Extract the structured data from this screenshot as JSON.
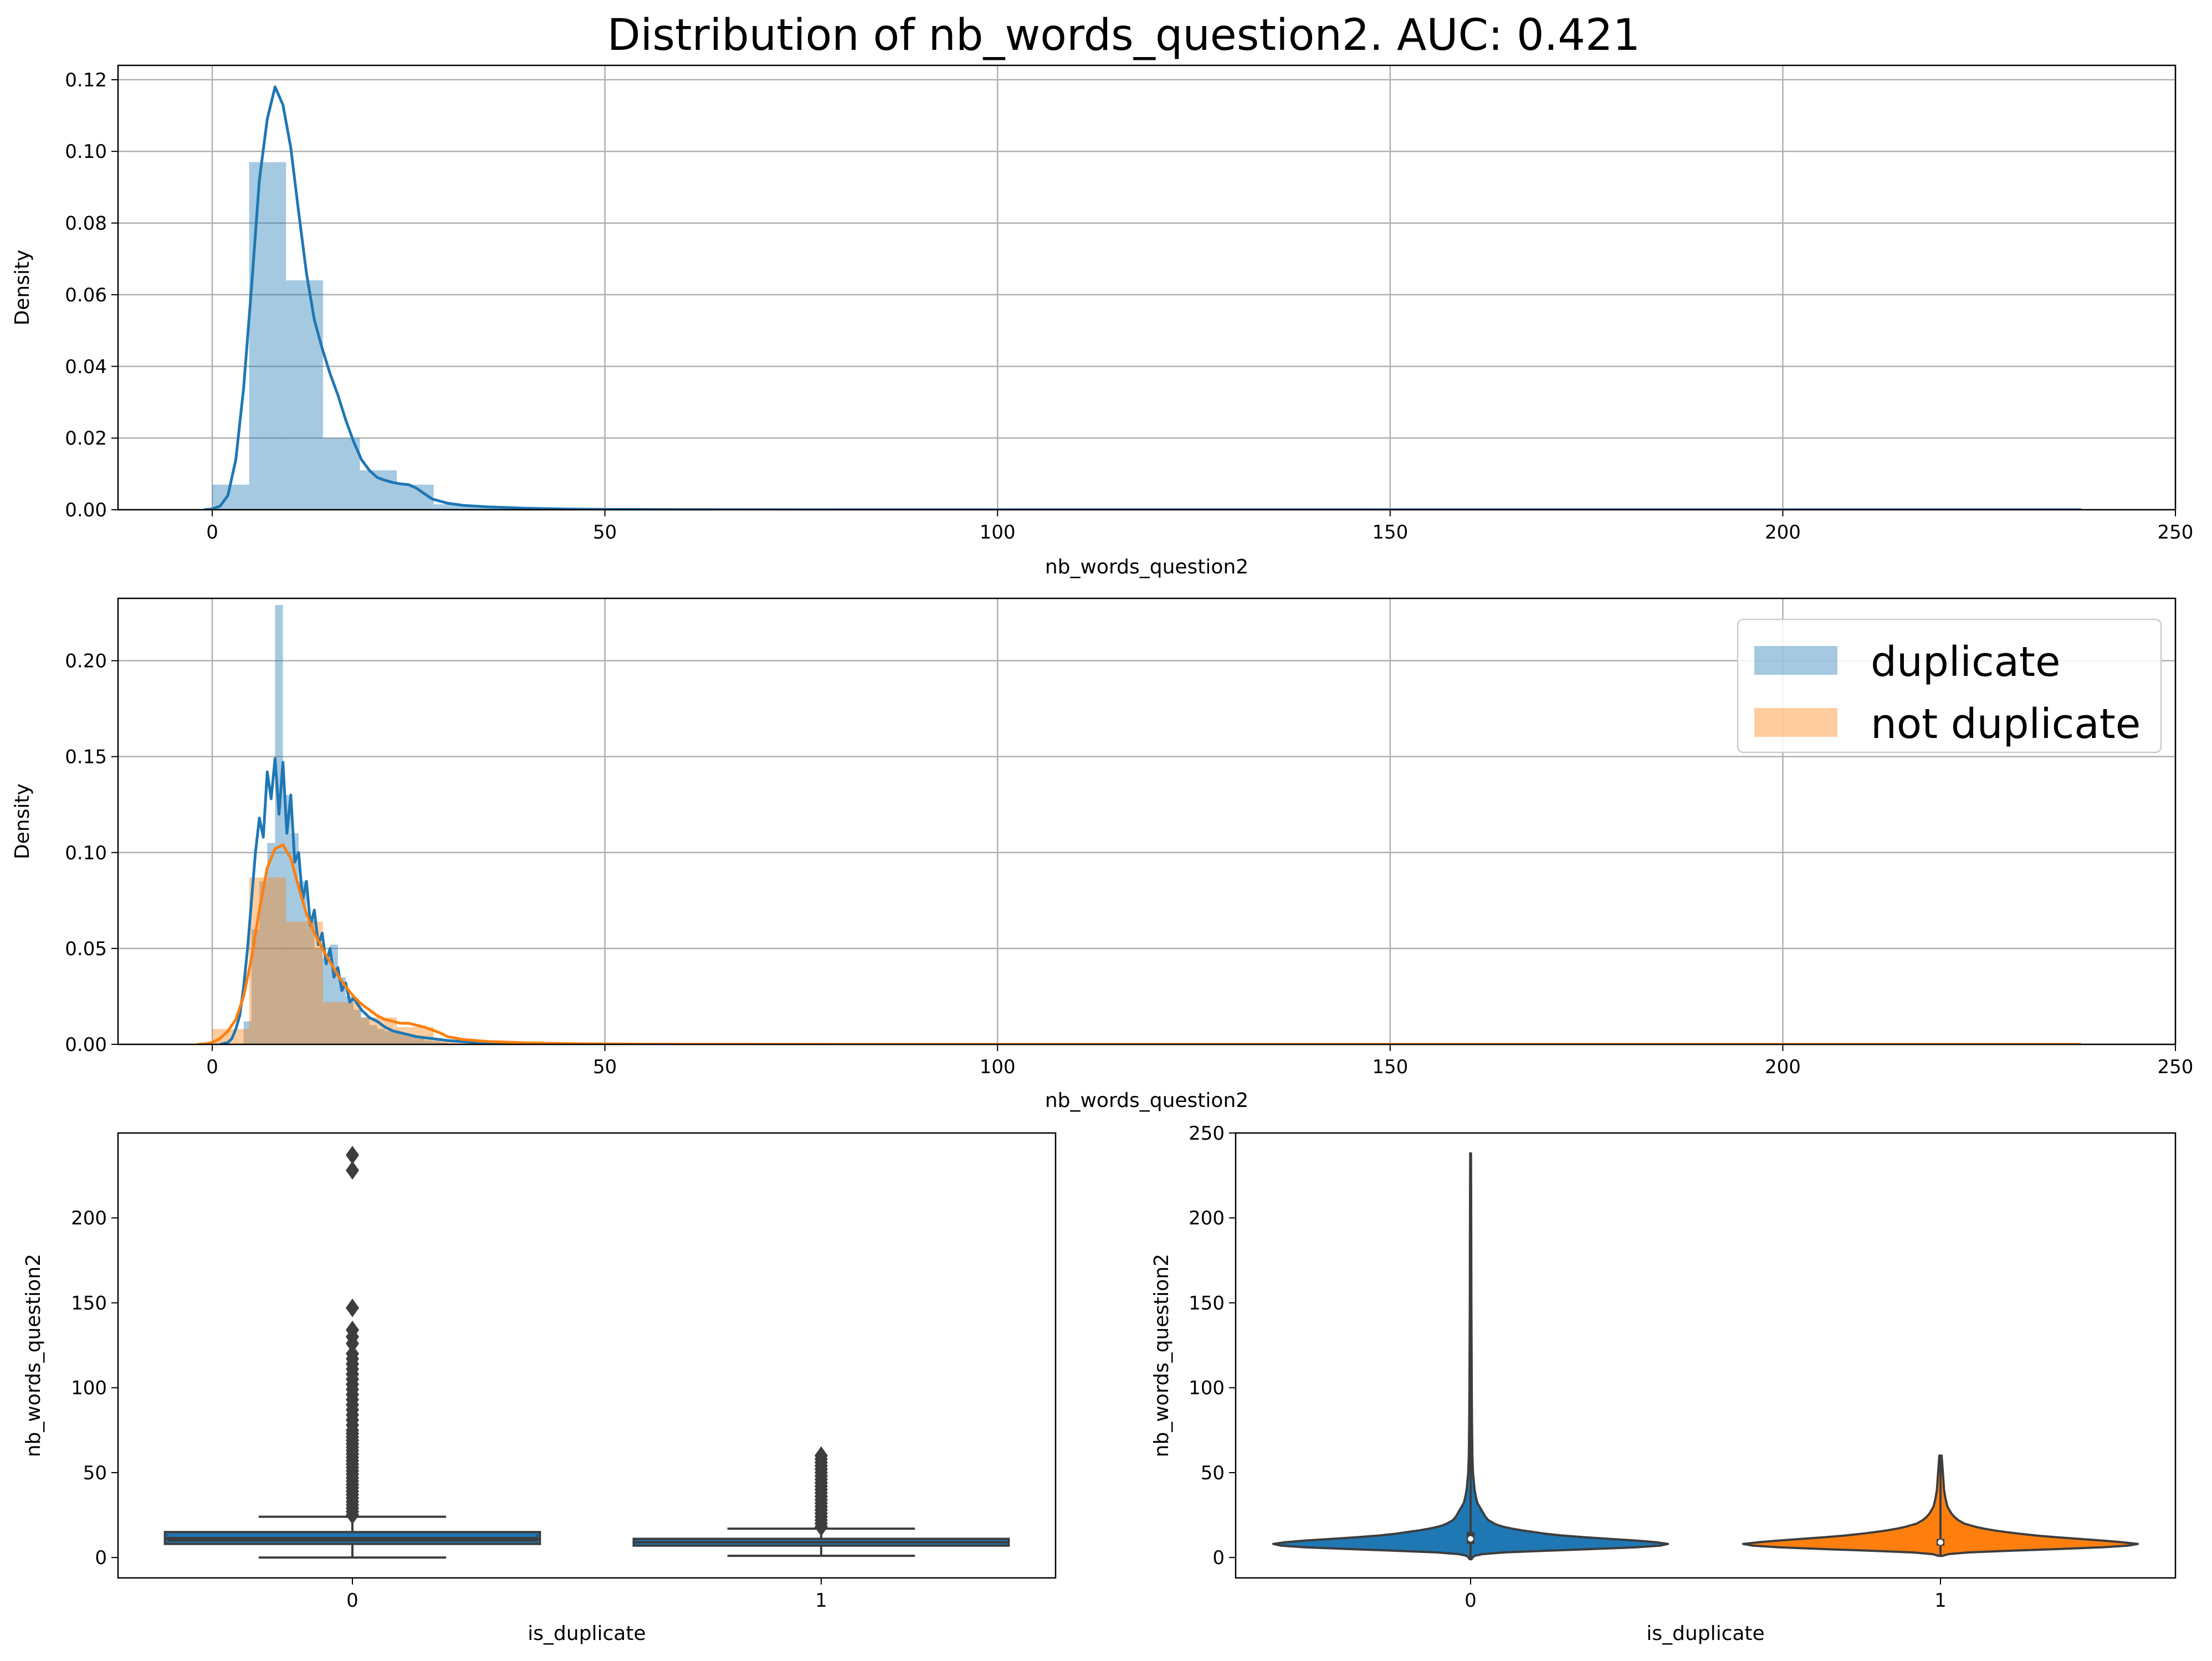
{
  "figure": {
    "title": "Distribution of nb_words_question2. AUC: 0.421"
  },
  "chart_data": [
    {
      "type": "histogram+kde",
      "xlabel": "nb_words_question2",
      "ylabel": "Density",
      "xlim": [
        -12,
        250
      ],
      "ylim": [
        0,
        0.124
      ],
      "xticks": [
        0,
        50,
        100,
        150,
        200,
        250
      ],
      "yticks": [
        0.0,
        0.02,
        0.04,
        0.06,
        0.08,
        0.1,
        0.12
      ],
      "grid": true,
      "color": "#1f77b4",
      "hist_alpha": 0.4,
      "histogram": {
        "edges": [
          0,
          4.7,
          9.4,
          14.1,
          18.8,
          23.5,
          28.2,
          32.9,
          37.6,
          42.3,
          47
        ],
        "values": [
          0.007,
          0.097,
          0.064,
          0.02,
          0.011,
          0.007,
          0.0015,
          0.0008,
          0.0004,
          0.0003
        ]
      },
      "kde": {
        "x": [
          -1,
          0,
          1,
          2,
          3,
          4,
          5,
          6,
          7,
          8,
          9,
          10,
          11,
          12,
          13,
          14,
          15,
          16,
          17,
          18,
          19,
          20,
          21,
          22,
          23,
          24,
          25,
          26,
          27,
          28,
          30,
          32,
          35,
          40,
          45,
          50,
          60,
          80,
          120,
          160,
          200,
          238
        ],
        "y": [
          0,
          0.0002,
          0.001,
          0.004,
          0.014,
          0.034,
          0.062,
          0.092,
          0.109,
          0.118,
          0.113,
          0.101,
          0.083,
          0.066,
          0.053,
          0.045,
          0.038,
          0.032,
          0.025,
          0.019,
          0.014,
          0.011,
          0.009,
          0.0082,
          0.0076,
          0.0072,
          0.007,
          0.006,
          0.0045,
          0.003,
          0.0018,
          0.0012,
          0.0008,
          0.0004,
          0.0002,
          0.0001,
          5e-05,
          0,
          0,
          0,
          0,
          0
        ]
      }
    },
    {
      "type": "histogram+kde",
      "xlabel": "nb_words_question2",
      "ylabel": "Density",
      "xlim": [
        -12,
        250
      ],
      "ylim": [
        0,
        0.2325
      ],
      "xticks": [
        0,
        50,
        100,
        150,
        200,
        250
      ],
      "yticks": [
        0.0,
        0.05,
        0.1,
        0.15,
        0.2
      ],
      "grid": true,
      "legend": "top-right",
      "series": [
        {
          "name": "duplicate",
          "color": "#1f77b4",
          "hist_alpha": 0.4,
          "histogram": {
            "edges": [
              4,
              5,
              6,
              7,
              8,
              9,
              10,
              11,
              12,
              13,
              14,
              15,
              16,
              17,
              18,
              19,
              20,
              21,
              22,
              23,
              24,
              25,
              26,
              27,
              28,
              29,
              30
            ],
            "values": [
              0.012,
              0.06,
              0.085,
              0.105,
              0.229,
              0.13,
              0.11,
              0.085,
              0.065,
              0.05,
              0.045,
              0.052,
              0.035,
              0.025,
              0.018,
              0.014,
              0.01,
              0.008,
              0.007,
              0.006,
              0.005,
              0.004,
              0.003,
              0.002,
              0.0015,
              0.001
            ]
          },
          "kde": {
            "x": [
              1,
              2,
              2.5,
              3,
              3.5,
              4,
              4.5,
              5,
              5.5,
              6,
              6.5,
              7,
              7.5,
              8,
              8.5,
              9,
              9.5,
              10,
              10.5,
              11,
              11.5,
              12,
              12.5,
              13,
              13.5,
              14,
              14.5,
              15,
              15.5,
              16,
              16.5,
              17,
              17.5,
              18,
              19,
              20,
              21,
              22,
              23,
              24,
              25,
              26,
              28,
              30,
              35,
              40,
              60,
              100,
              150,
              200,
              238
            ],
            "y": [
              0,
              0.001,
              0.003,
              0.008,
              0.015,
              0.03,
              0.05,
              0.075,
              0.1,
              0.118,
              0.108,
              0.142,
              0.128,
              0.149,
              0.12,
              0.147,
              0.11,
              0.13,
              0.095,
              0.1,
              0.075,
              0.085,
              0.062,
              0.07,
              0.052,
              0.058,
              0.042,
              0.05,
              0.035,
              0.04,
              0.028,
              0.032,
              0.022,
              0.024,
              0.018,
              0.014,
              0.012,
              0.009,
              0.007,
              0.006,
              0.005,
              0.004,
              0.003,
              0.002,
              0.0005,
              0.0002,
              0,
              0,
              0,
              0,
              0
            ]
          }
        },
        {
          "name": "not duplicate",
          "color": "#ff7f0e",
          "hist_alpha": 0.4,
          "histogram": {
            "edges": [
              0,
              4.7,
              9.4,
              14.1,
              18.8,
              23.5,
              28.2,
              32.9,
              37.6,
              42.3,
              47
            ],
            "values": [
              0.008,
              0.087,
              0.064,
              0.022,
              0.014,
              0.009,
              0.002,
              0.001,
              0.0005,
              0.0003
            ]
          },
          "kde": {
            "x": [
              -2,
              -1,
              0,
              1,
              2,
              3,
              4,
              5,
              6,
              7,
              8,
              9,
              10,
              11,
              12,
              13,
              14,
              15,
              16,
              17,
              18,
              19,
              20,
              21,
              22,
              23,
              24,
              25,
              26,
              27,
              28,
              29,
              30,
              32,
              35,
              40,
              45,
              50,
              60,
              80,
              120,
              160,
              200,
              238
            ],
            "y": [
              0,
              0.0002,
              0.001,
              0.003,
              0.007,
              0.013,
              0.025,
              0.045,
              0.07,
              0.092,
              0.102,
              0.104,
              0.097,
              0.082,
              0.068,
              0.058,
              0.05,
              0.043,
              0.036,
              0.03,
              0.025,
              0.021,
              0.018,
              0.015,
              0.013,
              0.012,
              0.011,
              0.011,
              0.01,
              0.009,
              0.0075,
              0.006,
              0.004,
              0.0025,
              0.0015,
              0.0008,
              0.0004,
              0.0002,
              0.0001,
              0,
              0,
              0,
              0,
              0
            ]
          }
        }
      ]
    },
    {
      "type": "box",
      "xlabel": "is_duplicate",
      "ylabel": "nb_words_question2",
      "categories": [
        "0",
        "1"
      ],
      "ylim": [
        -12,
        250
      ],
      "yticks": [
        0,
        50,
        100,
        150,
        200
      ],
      "color": "#1f77b4",
      "box_edge_color": "#3d3d3d",
      "boxes": [
        {
          "category": "0",
          "whisker_low": 0,
          "q1": 8,
          "median": 11,
          "mean_line": 13,
          "q3": 15,
          "whisker_high": 24,
          "outliers": [
            25,
            27,
            29,
            31,
            33,
            35,
            37,
            39,
            41,
            43,
            45,
            47,
            49,
            51,
            53,
            55,
            57,
            59,
            61,
            63,
            65,
            67,
            69,
            71,
            73,
            75,
            78,
            81,
            84,
            87,
            90,
            93,
            96,
            99,
            102,
            105,
            108,
            111,
            114,
            117,
            120,
            126,
            130,
            134,
            147,
            228,
            237
          ]
        },
        {
          "category": "1",
          "whisker_low": 1,
          "q1": 7,
          "median": 9,
          "q3": 11,
          "whisker_high": 17,
          "outliers": [
            18,
            20,
            22,
            24,
            26,
            28,
            30,
            32,
            34,
            36,
            38,
            40,
            42,
            44,
            46,
            48,
            50,
            52,
            54,
            56,
            58,
            60
          ]
        }
      ]
    },
    {
      "type": "violin",
      "xlabel": "is_duplicate",
      "ylabel": "nb_words_question2",
      "categories": [
        "0",
        "1"
      ],
      "ylim": [
        -12,
        250
      ],
      "yticks": [
        0,
        50,
        100,
        150,
        200,
        250
      ],
      "violins": [
        {
          "category": "0",
          "color": "#1f77b4",
          "min": -1,
          "max": 238,
          "q1": 8,
          "median": 11,
          "q3": 15,
          "profile_y": [
            -1,
            0,
            1,
            2,
            3,
            4,
            5,
            6,
            7,
            8,
            9,
            10,
            11,
            12,
            13,
            14,
            15,
            16,
            17,
            18,
            19,
            20,
            22,
            24,
            26,
            28,
            30,
            32,
            35,
            40,
            50,
            60,
            80,
            100,
            150,
            200,
            238
          ],
          "profile_w": [
            0.005,
            0.01,
            0.02,
            0.06,
            0.17,
            0.38,
            0.62,
            0.84,
            0.96,
            1.0,
            0.94,
            0.84,
            0.7,
            0.57,
            0.46,
            0.38,
            0.32,
            0.26,
            0.21,
            0.17,
            0.14,
            0.12,
            0.09,
            0.075,
            0.065,
            0.055,
            0.045,
            0.035,
            0.028,
            0.02,
            0.012,
            0.009,
            0.007,
            0.006,
            0.004,
            0.003,
            0.002
          ]
        },
        {
          "category": "1",
          "color": "#ff7f0e",
          "min": 1,
          "max": 60,
          "q1": 7,
          "median": 9,
          "q3": 11,
          "profile_y": [
            1,
            2,
            3,
            4,
            5,
            6,
            7,
            8,
            9,
            10,
            11,
            12,
            13,
            14,
            15,
            16,
            17,
            18,
            19,
            20,
            22,
            24,
            26,
            28,
            30,
            35,
            40,
            50,
            60
          ],
          "profile_w": [
            0.01,
            0.04,
            0.14,
            0.35,
            0.6,
            0.82,
            0.95,
            1.0,
            0.92,
            0.82,
            0.7,
            0.58,
            0.48,
            0.4,
            0.33,
            0.27,
            0.22,
            0.18,
            0.15,
            0.12,
            0.09,
            0.07,
            0.055,
            0.045,
            0.035,
            0.025,
            0.018,
            0.012,
            0.006
          ]
        }
      ]
    }
  ]
}
